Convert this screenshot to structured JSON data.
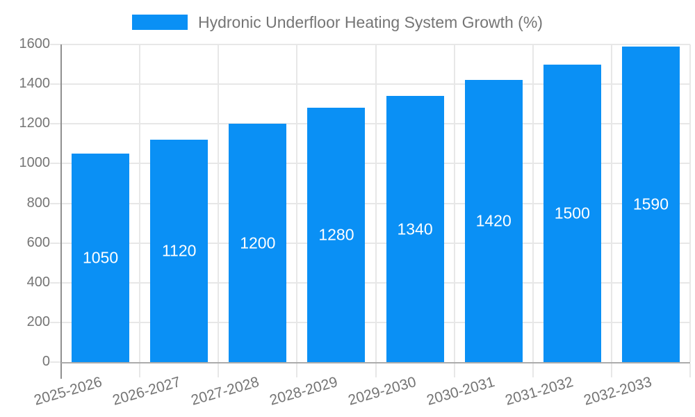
{
  "legend": {
    "label": "Hydronic Underfloor Heating System Growth (%)"
  },
  "colors": {
    "bar": "#0a90f5",
    "grid_line": "#e7e7e7",
    "x_axis_line": "#ababab",
    "y_axis_line": "#8f8f8f",
    "axis_text": "#757575",
    "bar_value_text": "#ffffff",
    "background": "#ffffff"
  },
  "chart_data": {
    "type": "bar",
    "title": "",
    "xlabel": "",
    "ylabel": "",
    "categories": [
      "2025-2026",
      "2026-2027",
      "2027-2028",
      "2028-2029",
      "2029-2030",
      "2030-2031",
      "2031-2032",
      "2032-2033"
    ],
    "series": [
      {
        "name": "Hydronic Underfloor Heating System Growth (%)",
        "values": [
          1050,
          1120,
          1200,
          1280,
          1340,
          1420,
          1500,
          1590
        ]
      }
    ],
    "ylim": [
      0,
      1600
    ],
    "yticks": [
      0,
      200,
      400,
      600,
      800,
      1000,
      1200,
      1400,
      1600
    ],
    "grid": "on",
    "legend_position": "top",
    "value_labels": "inside-bar, vertically centered, white"
  }
}
